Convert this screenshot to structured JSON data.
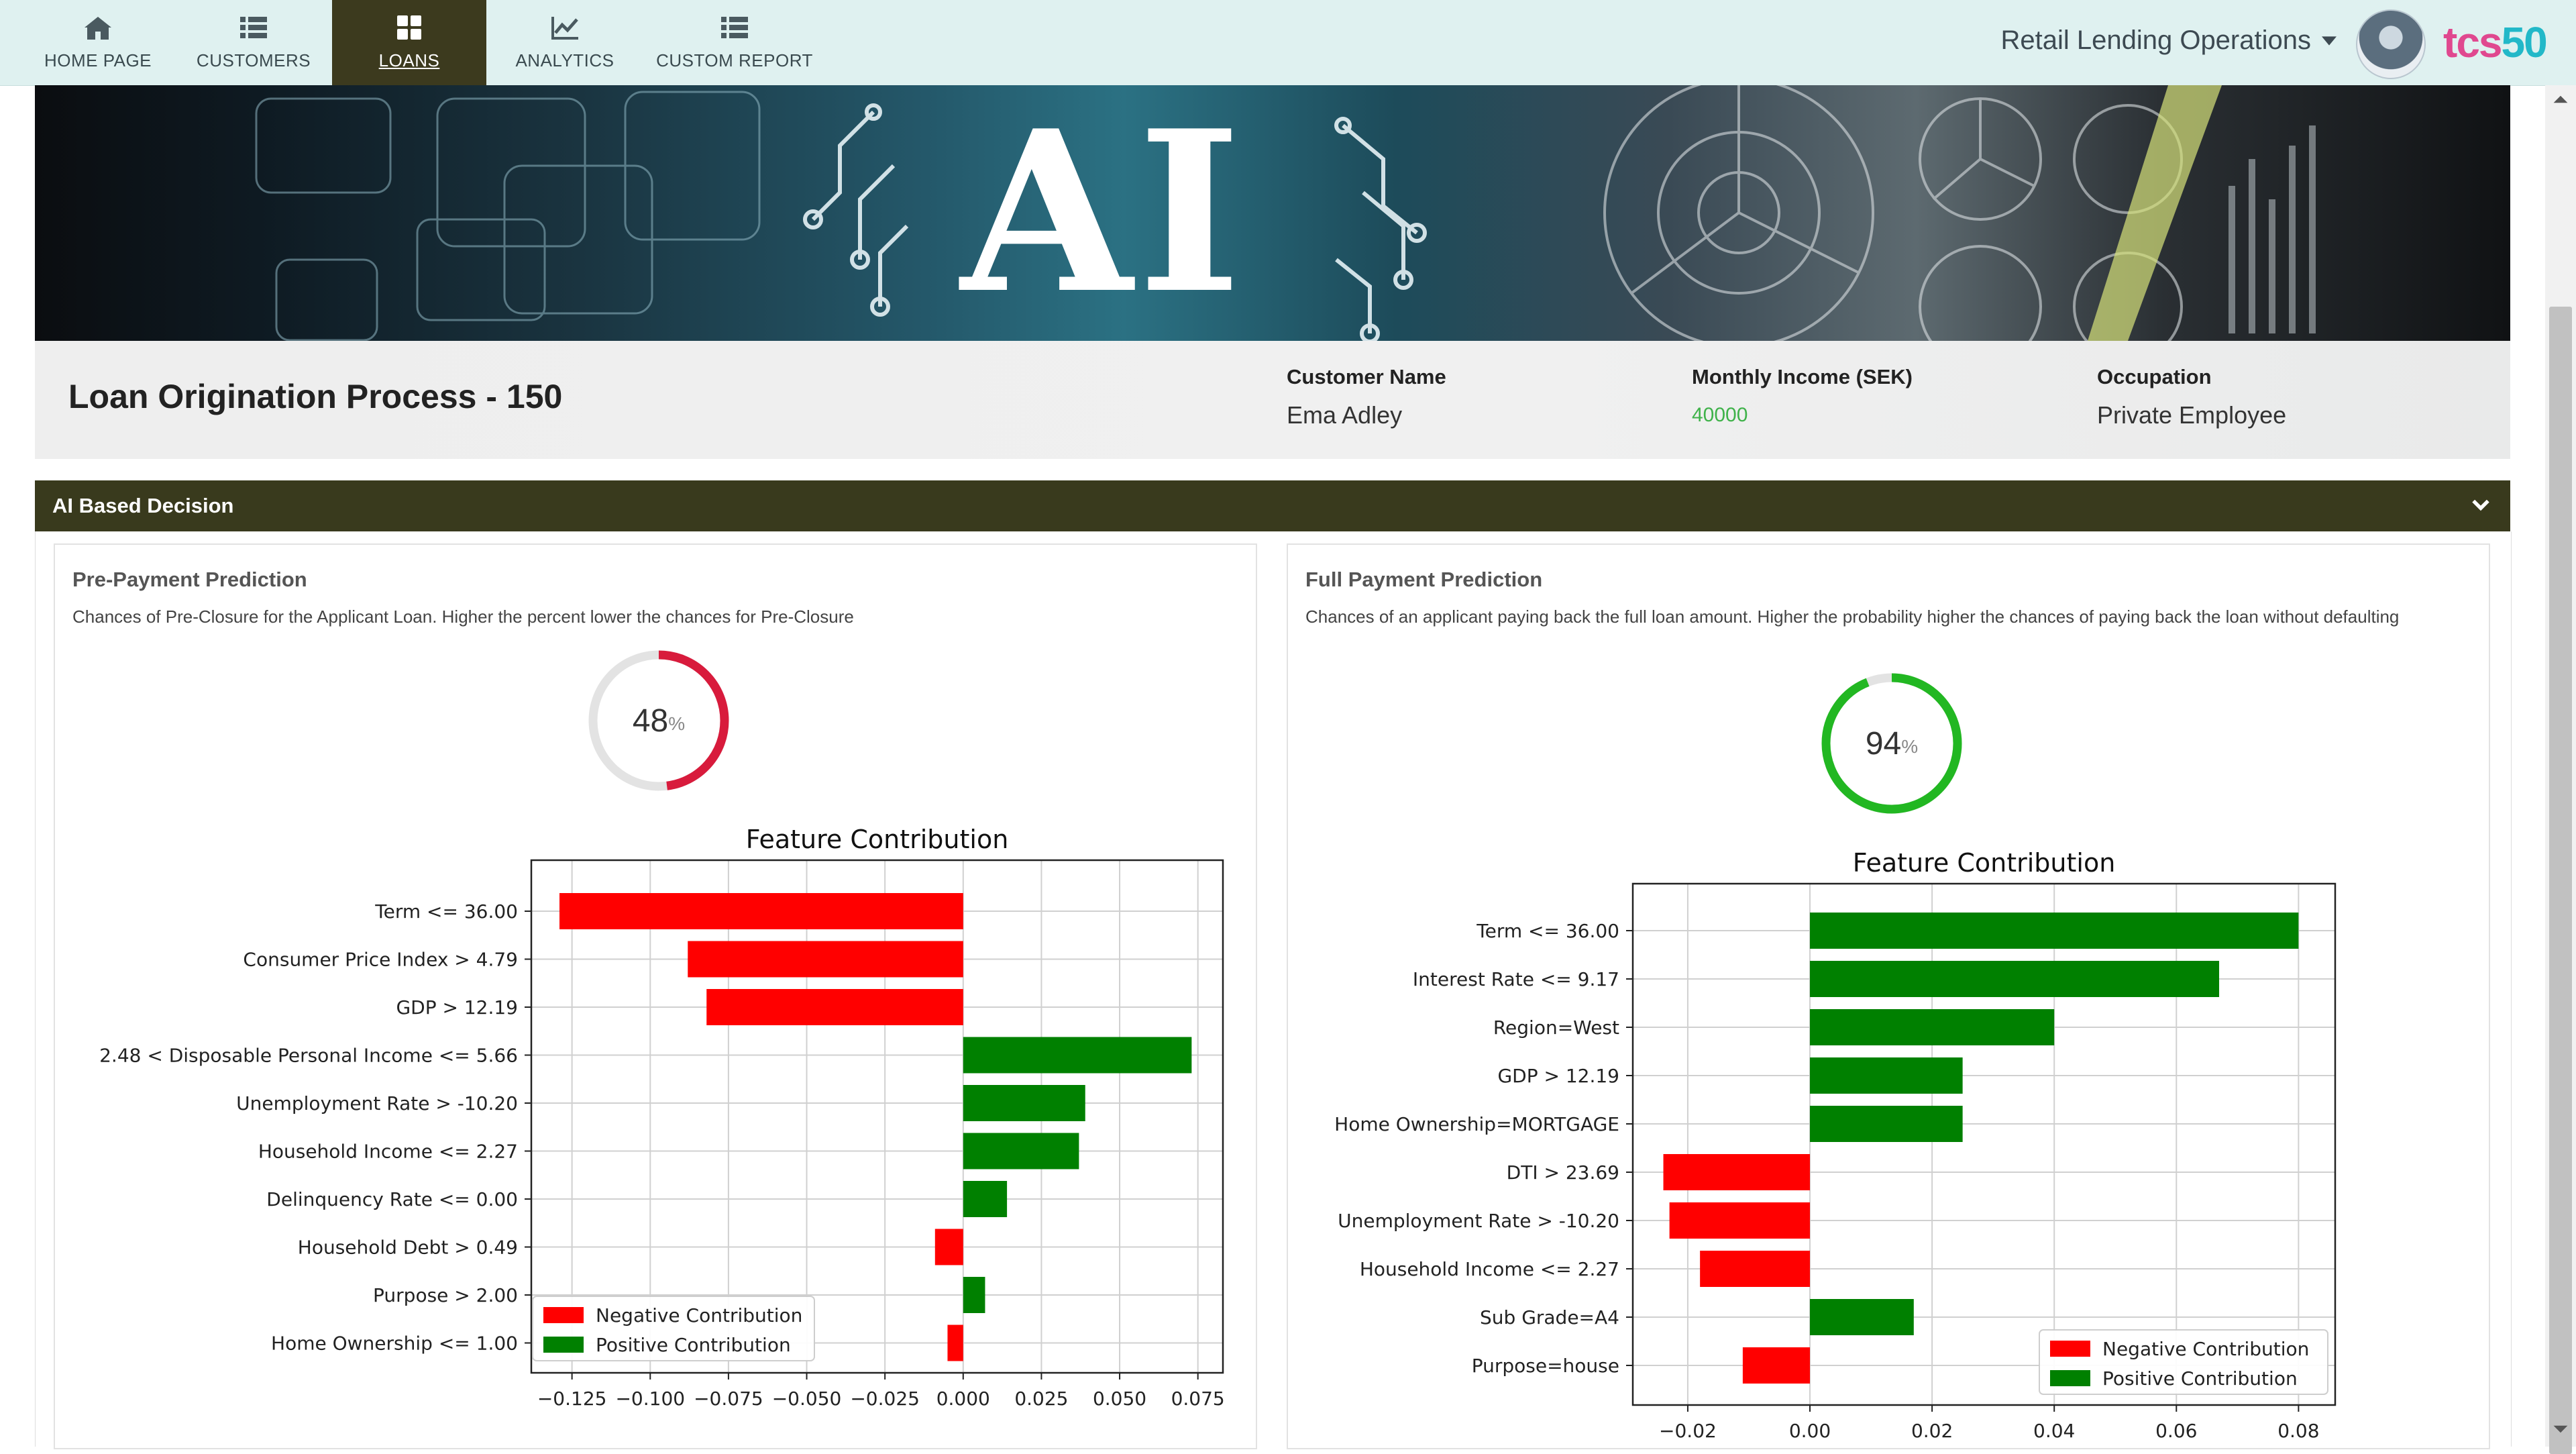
{
  "nav": {
    "items": [
      {
        "label": "HOME PAGE",
        "icon": "home-icon"
      },
      {
        "label": "CUSTOMERS",
        "icon": "list-icon"
      },
      {
        "label": "LOANS",
        "icon": "grid-icon",
        "active": true
      },
      {
        "label": "ANALYTICS",
        "icon": "line-chart-icon"
      },
      {
        "label": "CUSTOM REPORT",
        "icon": "list-icon"
      }
    ],
    "operations_label": "Retail Lending Operations",
    "logo_text_a": "tcs",
    "logo_text_b": "50"
  },
  "banner": {
    "text": "AI"
  },
  "header": {
    "title": "Loan Origination Process - 150",
    "fields": [
      {
        "label": "Customer Name",
        "value": "Ema Adley"
      },
      {
        "label": "Monthly Income (SEK)",
        "value": "40000"
      },
      {
        "label": "Occupation",
        "value": "Private Employee"
      }
    ]
  },
  "ai_panel": {
    "title": "AI Based Decision"
  },
  "prepayment": {
    "title": "Pre-Payment Prediction",
    "description": "Chances of Pre-Closure for the Applicant Loan. Higher the percent lower the chances for Pre-Closure",
    "percent": 48,
    "percent_sign": "%",
    "gauge_color": "#d81b3c"
  },
  "fullpayment": {
    "title": "Full Payment Prediction",
    "description": "Chances of an applicant paying back the full loan amount. Higher the probability higher the chances of paying back the loan without defaulting",
    "percent": 94,
    "percent_sign": "%",
    "gauge_color": "#22b722"
  },
  "chart_data": [
    {
      "type": "bar",
      "orientation": "horizontal",
      "title": "Feature Contribution",
      "categories": [
        "Term <= 36.00",
        "Consumer Price Index > 4.79",
        "GDP > 12.19",
        "2.48 < Disposable Personal Income <= 5.66",
        "Unemployment Rate > -10.20",
        "Household Income <= 2.27",
        "Delinquency Rate <= 0.00",
        "Household Debt > 0.49",
        "Purpose > 2.00",
        "Home Ownership <= 1.00"
      ],
      "values": [
        -0.129,
        -0.088,
        -0.082,
        0.073,
        0.039,
        0.037,
        0.014,
        -0.009,
        0.007,
        -0.005
      ],
      "xlim": [
        -0.138,
        0.083
      ],
      "xticks": [
        "−0.125",
        "−0.100",
        "−0.075",
        "−0.050",
        "−0.025",
        "0.000",
        "0.025",
        "0.050",
        "0.075"
      ],
      "xtick_values": [
        -0.125,
        -0.1,
        -0.075,
        -0.05,
        -0.025,
        0,
        0.025,
        0.05,
        0.075
      ],
      "grid": true,
      "legend_position": "bottom-left",
      "legend": [
        {
          "name": "Negative Contribution",
          "color": "#ff0000"
        },
        {
          "name": "Positive Contribution",
          "color": "#008000"
        }
      ]
    },
    {
      "type": "bar",
      "orientation": "horizontal",
      "title": "Feature Contribution",
      "categories": [
        "Term <= 36.00",
        "Interest Rate <= 9.17",
        "Region=West",
        "GDP > 12.19",
        "Home Ownership=MORTGAGE",
        "DTI > 23.69",
        "Unemployment Rate > -10.20",
        "Household Income <= 2.27",
        "Sub Grade=A4",
        "Purpose=house"
      ],
      "values": [
        0.08,
        0.067,
        0.04,
        0.025,
        0.025,
        -0.024,
        -0.023,
        -0.018,
        0.017,
        -0.011
      ],
      "xlim": [
        -0.029,
        0.086
      ],
      "xticks": [
        "−0.02",
        "0.00",
        "0.02",
        "0.04",
        "0.06",
        "0.08"
      ],
      "xtick_values": [
        -0.02,
        0,
        0.02,
        0.04,
        0.06,
        0.08
      ],
      "grid": true,
      "legend_position": "bottom-right",
      "legend": [
        {
          "name": "Negative Contribution",
          "color": "#ff0000"
        },
        {
          "name": "Positive Contribution",
          "color": "#008000"
        }
      ]
    }
  ]
}
